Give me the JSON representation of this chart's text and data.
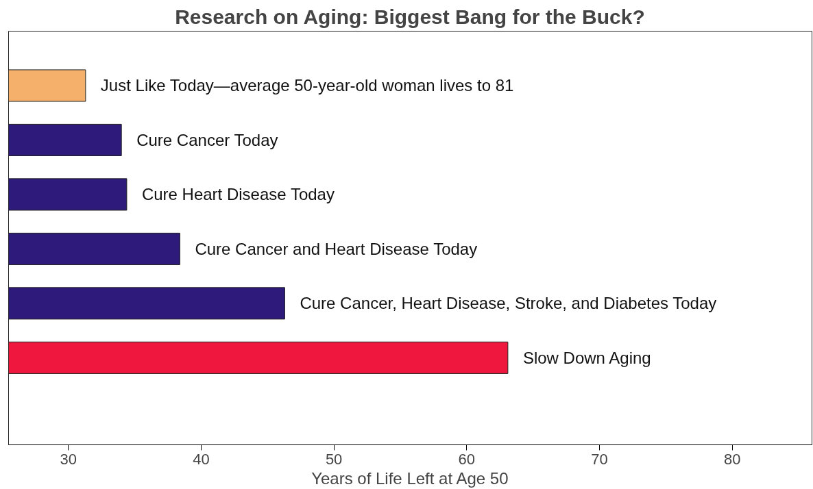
{
  "chart_data": {
    "type": "bar",
    "orientation": "horizontal",
    "title": "Research on Aging: Biggest Bang for the Buck?",
    "xlabel": "Years of Life Left at Age 50",
    "categories": [
      "Just Like Today—average 50-year-old woman lives to 81",
      "Cure Cancer Today",
      "Cure Heart Disease Today",
      "Cure Cancer and Heart Disease Today",
      "Cure Cancer, Heart Disease, Stroke, and Diabetes Today",
      "Slow Down Aging"
    ],
    "values": [
      31.3,
      34.0,
      34.4,
      38.4,
      46.3,
      63.1
    ],
    "colors": [
      "#f5b06c",
      "#2e1a7a",
      "#2e1a7a",
      "#2e1a7a",
      "#2e1a7a",
      "#f0173f"
    ],
    "xlim": [
      25.5,
      86
    ],
    "xticks": [
      30,
      40,
      50,
      60,
      70,
      80
    ],
    "grid": false,
    "tick_labels": "x"
  }
}
